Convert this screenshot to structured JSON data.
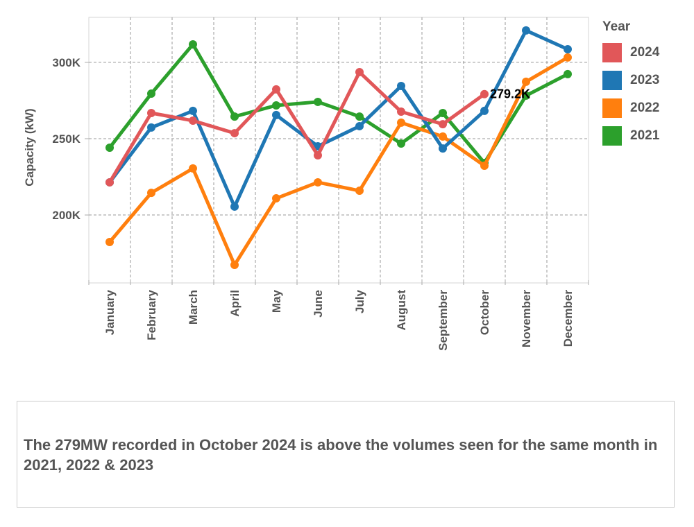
{
  "chart_data": {
    "type": "line",
    "title": "",
    "xlabel": "",
    "ylabel": "Capacity (kW)",
    "ylim": [
      155.5,
      329.5
    ],
    "yticks": [
      {
        "value": 200,
        "label": "200K"
      },
      {
        "value": 250,
        "label": "250K"
      },
      {
        "value": 300,
        "label": "300K"
      }
    ],
    "categories": [
      "January",
      "February",
      "March",
      "April",
      "May",
      "June",
      "July",
      "August",
      "September",
      "October",
      "November",
      "December"
    ],
    "grid": true,
    "legend_title": "Year",
    "legend_position": "right",
    "series": [
      {
        "name": "2024",
        "color": "#e15759",
        "values": [
          221.4,
          266.8,
          261.8,
          253.6,
          282.3,
          239.1,
          293.6,
          267.7,
          259.5,
          279.2,
          null,
          null
        ]
      },
      {
        "name": "2023",
        "color": "#1f77b4",
        "values": [
          221.4,
          257.3,
          268.2,
          205.5,
          265.5,
          245.0,
          258.2,
          284.5,
          243.6,
          268.2,
          320.9,
          308.6
        ]
      },
      {
        "name": "2022",
        "color": "#ff7f0e",
        "values": [
          182.3,
          214.5,
          230.5,
          167.3,
          210.9,
          221.4,
          215.9,
          260.5,
          251.4,
          232.3,
          287.3,
          303.2
        ]
      },
      {
        "name": "2021",
        "color": "#2ca02c",
        "values": [
          244.1,
          279.5,
          311.8,
          264.5,
          271.8,
          274.1,
          264.5,
          246.8,
          266.8,
          234.1,
          278.2,
          292.3
        ]
      }
    ],
    "annotations": [
      {
        "series": "2024",
        "category": "October",
        "label": "279.2K"
      }
    ]
  },
  "note": "The 279MW recorded in October 2024 is above the volumes seen for the same month in 2021, 2022 & 2023"
}
